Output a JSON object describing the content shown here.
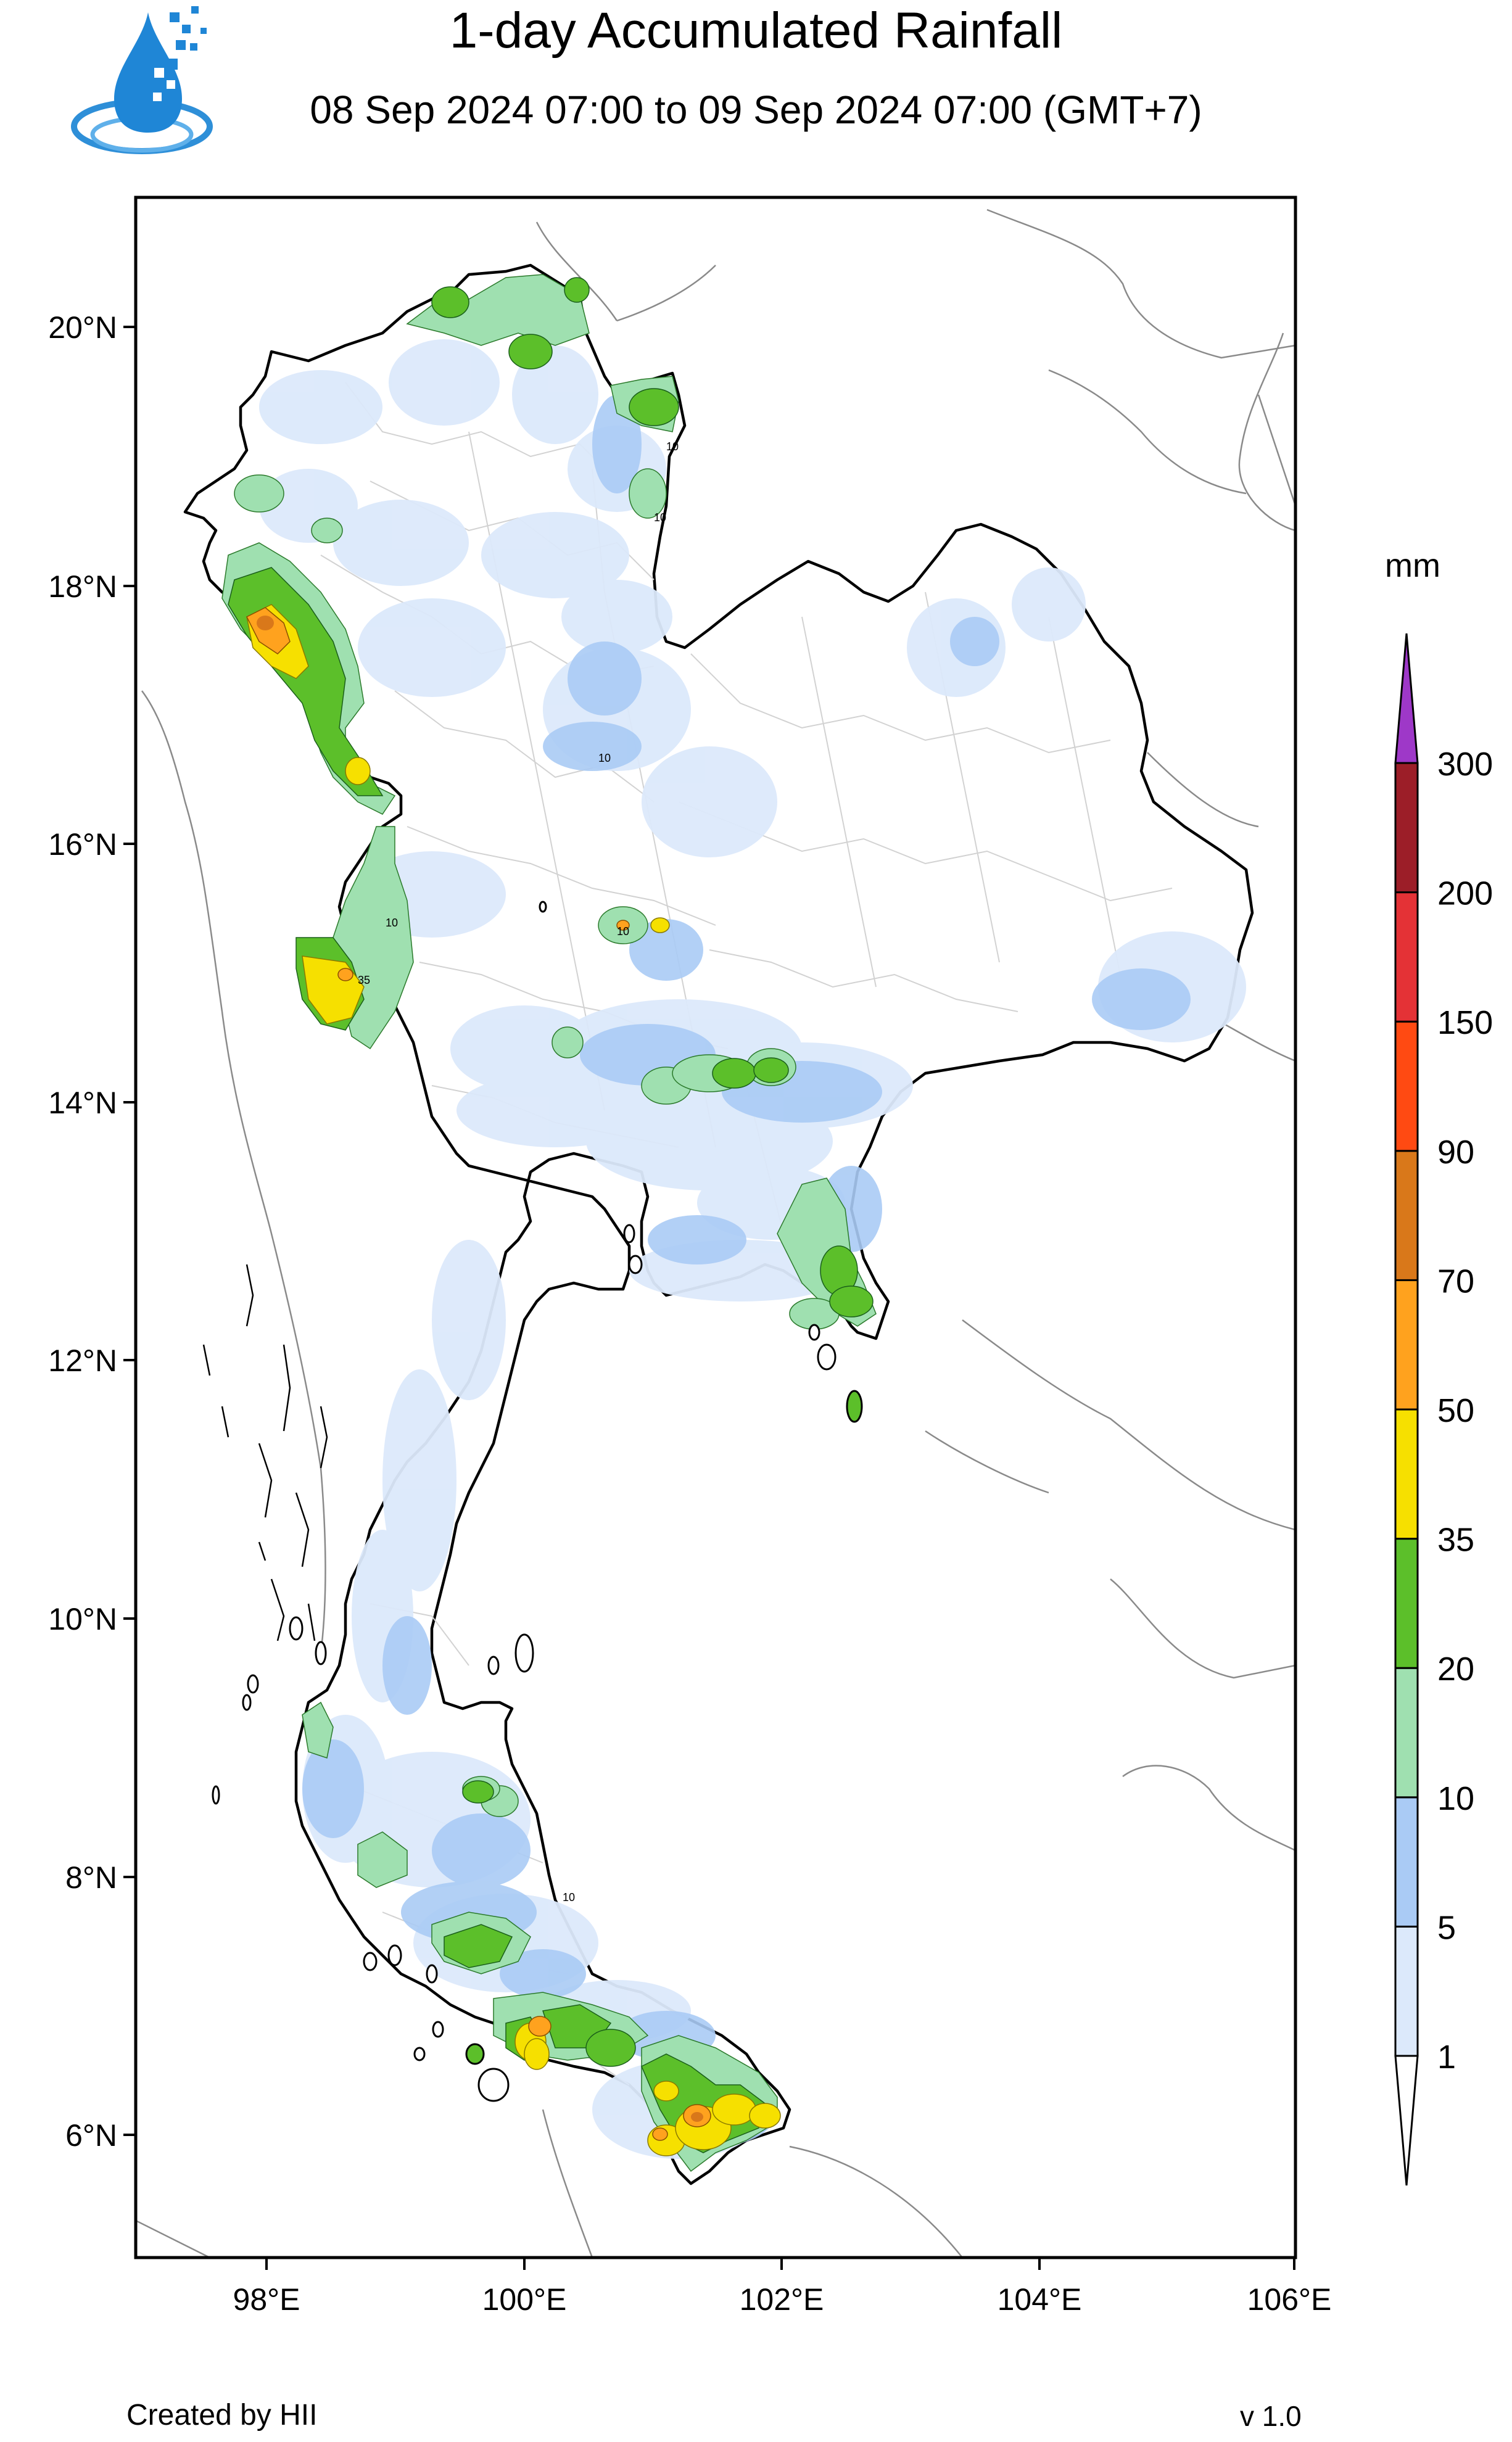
{
  "title": "1-day Accumulated Rainfall",
  "subtitle": "08 Sep 2024 07:00 to 09 Sep 2024 07:00 (GMT+7)",
  "colorbar": {
    "unit": "mm",
    "levels": [
      "1",
      "5",
      "10",
      "20",
      "35",
      "50",
      "70",
      "90",
      "150",
      "200",
      "300"
    ],
    "colors": [
      "#dce9fb",
      "#aacbf5",
      "#9fe0b0",
      "#5cbf2a",
      "#f6e000",
      "#ffa21e",
      "#d9781a",
      "#ff4a12",
      "#e43236",
      "#9c1e28",
      "#9e38c8"
    ]
  },
  "axes": {
    "lat_labels": [
      "20°N",
      "18°N",
      "16°N",
      "14°N",
      "12°N",
      "10°N",
      "8°N",
      "6°N"
    ],
    "lon_labels": [
      "98°E",
      "100°E",
      "102°E",
      "104°E",
      "106°E"
    ]
  },
  "contour_labels": [
    "10",
    "10",
    "10",
    "10",
    "35",
    "10",
    "10"
  ],
  "logo_icon": "water-drop-logo-icon",
  "footer": {
    "credit": "Created by HII",
    "version": "v 1.0"
  }
}
